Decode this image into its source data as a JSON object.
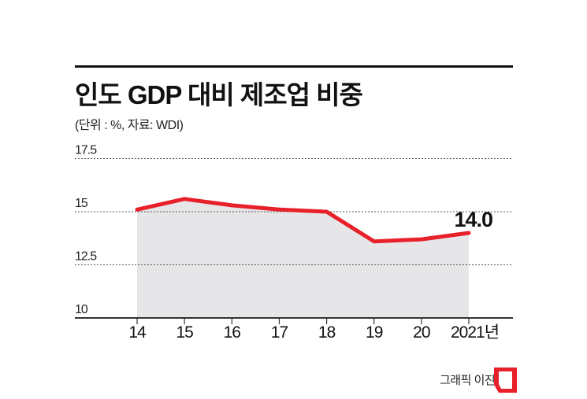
{
  "title": "인도 GDP 대비 제조업 비중",
  "subtitle": "(단위 : %, 자료: WDI)",
  "credit": "그래픽 이진경",
  "colors": {
    "line": "#e8202a",
    "fill": "#e6e6e9",
    "grid": "#555555",
    "logo": "#e8202a"
  },
  "chart_data": {
    "type": "area",
    "title": "인도 GDP 대비 제조업 비중",
    "ylabel": "",
    "xlabel": "",
    "categories": [
      "14",
      "15",
      "16",
      "17",
      "18",
      "19",
      "20",
      "2021년"
    ],
    "values": [
      15.1,
      15.6,
      15.3,
      15.1,
      15.0,
      13.6,
      13.7,
      14.0
    ],
    "ylim": [
      10,
      17.5
    ],
    "yticks": [
      "10",
      "12.5",
      "15",
      "17.5"
    ],
    "grid": true,
    "annotations": [
      {
        "category": "2021년",
        "text": "14.0"
      }
    ]
  }
}
